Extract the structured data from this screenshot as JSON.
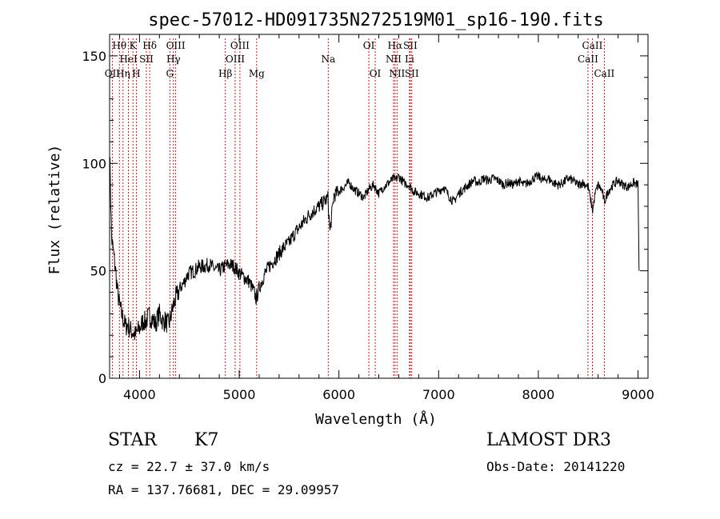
{
  "chart_data": {
    "type": "line",
    "title": "spec-57012-HD091735N272519M01_sp16-190.fits",
    "xlabel": "Wavelength (Å)",
    "ylabel": "Flux (relative)",
    "xlim": [
      3700,
      9100
    ],
    "ylim": [
      0,
      160
    ],
    "x_ticks": [
      "4000",
      "5000",
      "6000",
      "7000",
      "8000",
      "9000"
    ],
    "y_ticks": [
      "0",
      "50",
      "100",
      "150"
    ],
    "grid": false,
    "line_color": "#000000",
    "marker_color": "#cc0000",
    "series": [
      {
        "x": [
          3700,
          3720,
          3740,
          3760,
          3780,
          3800,
          3820,
          3840,
          3860,
          3880,
          3900,
          3920,
          3940,
          3960,
          3980,
          4000,
          4020,
          4040,
          4060,
          4080,
          4100,
          4120,
          4140,
          4160,
          4180,
          4200,
          4220,
          4240,
          4260,
          4280,
          4300,
          4320,
          4340,
          4360,
          4380,
          4400,
          4420,
          4440,
          4460,
          4480,
          4500,
          4550,
          4600,
          4650,
          4700,
          4750,
          4800,
          4850,
          4900,
          4950,
          5000,
          5050,
          5100,
          5150,
          5170,
          5200,
          5250,
          5300,
          5350,
          5400,
          5450,
          5500,
          5550,
          5600,
          5650,
          5700,
          5750,
          5800,
          5850,
          5890,
          5910,
          5950,
          6000,
          6050,
          6100,
          6150,
          6200,
          6250,
          6300,
          6350,
          6400,
          6450,
          6500,
          6550,
          6563,
          6600,
          6650,
          6700,
          6750,
          6800,
          6850,
          6900,
          6950,
          7000,
          7050,
          7100,
          7150,
          7200,
          7250,
          7300,
          7350,
          7400,
          7450,
          7500,
          7550,
          7600,
          7650,
          7700,
          7750,
          7800,
          7850,
          7900,
          7950,
          8000,
          8050,
          8100,
          8150,
          8200,
          8250,
          8300,
          8350,
          8400,
          8450,
          8500,
          8520,
          8545,
          8570,
          8600,
          8640,
          8662,
          8700,
          8750,
          8800,
          8850,
          8900,
          8950,
          9000,
          9010
        ],
        "y": [
          107,
          65,
          58,
          50,
          40,
          34,
          30,
          27,
          24,
          25,
          23,
          22,
          21,
          20,
          22,
          23,
          25,
          27,
          26,
          28,
          29,
          28,
          27,
          25,
          28,
          30,
          28,
          26,
          27,
          25,
          26,
          30,
          34,
          37,
          39,
          41,
          43,
          44,
          46,
          48,
          49,
          50,
          52,
          52,
          53,
          51,
          50,
          52,
          53,
          52,
          49,
          47,
          45,
          40,
          37,
          42,
          48,
          52,
          55,
          58,
          61,
          63,
          67,
          70,
          73,
          76,
          78,
          80,
          82,
          84,
          68,
          85,
          87,
          89,
          91,
          88,
          86,
          84,
          88,
          90,
          86,
          89,
          91,
          93,
          92,
          94,
          91,
          90,
          87,
          86,
          85,
          84,
          86,
          87,
          89,
          85,
          82,
          86,
          88,
          90,
          92,
          91,
          93,
          92,
          93,
          92,
          90,
          91,
          90,
          92,
          90,
          91,
          93,
          94,
          92,
          93,
          91,
          90,
          91,
          93,
          92,
          90,
          91,
          89,
          84,
          78,
          86,
          90,
          87,
          82,
          87,
          90,
          92,
          90,
          89,
          91,
          90,
          50
        ]
      }
    ],
    "line_markers": [
      {
        "label": "Hθ",
        "x": 3798,
        "row": 0
      },
      {
        "label": "OII",
        "x": 3727,
        "row": 2
      },
      {
        "label": "Hη",
        "x": 3835,
        "row": 2
      },
      {
        "label": "HeI",
        "x": 3889,
        "row": 1
      },
      {
        "label": "K",
        "x": 3934,
        "row": 0
      },
      {
        "label": "SII",
        "x": 4069,
        "row": 1
      },
      {
        "label": "H",
        "x": 3968,
        "row": 2
      },
      {
        "label": "Hδ",
        "x": 4102,
        "row": 0
      },
      {
        "label": "OIII",
        "x": 4363,
        "row": 0
      },
      {
        "label": "Hγ",
        "x": 4340,
        "row": 1
      },
      {
        "label": "G",
        "x": 4304,
        "row": 2
      },
      {
        "label": "Hβ",
        "x": 4861,
        "row": 2
      },
      {
        "label": "OIII",
        "x": 5007,
        "row": 0
      },
      {
        "label": "OIII",
        "x": 4959,
        "row": 1
      },
      {
        "label": "Mg",
        "x": 5175,
        "row": 2
      },
      {
        "label": "Na",
        "x": 5893,
        "row": 1
      },
      {
        "label": "OI",
        "x": 6300,
        "row": 0
      },
      {
        "label": "OI",
        "x": 6364,
        "row": 2
      },
      {
        "label": "Hα",
        "x": 6563,
        "row": 0
      },
      {
        "label": "NII",
        "x": 6548,
        "row": 1
      },
      {
        "label": "NII",
        "x": 6583,
        "row": 2
      },
      {
        "label": "SII",
        "x": 6716,
        "row": 0
      },
      {
        "label": "Li",
        "x": 6708,
        "row": 1
      },
      {
        "label": "SII",
        "x": 6731,
        "row": 2
      },
      {
        "label": "CaII",
        "x": 8542,
        "row": 0
      },
      {
        "label": "CaII",
        "x": 8498,
        "row": 1
      },
      {
        "label": "CaII",
        "x": 8662,
        "row": 2
      }
    ]
  },
  "info": {
    "class_label": "STAR",
    "subclass": "K7",
    "survey": "LAMOST DR3",
    "cz_text": "cz = 22.7 ± 37.0 km/s",
    "obs_date": "Obs-Date: 20141220",
    "coords": "RA = 137.76681, DEC =  29.09957"
  }
}
